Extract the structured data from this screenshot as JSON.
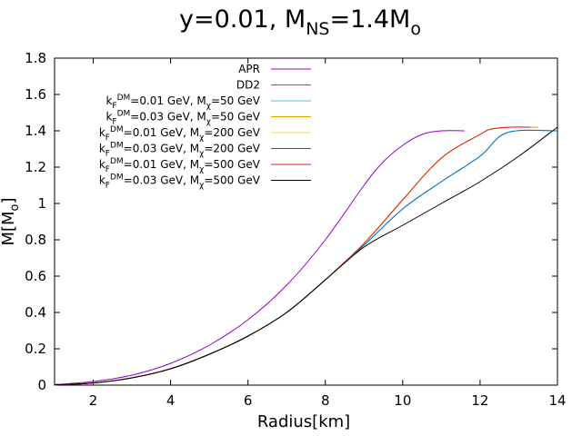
{
  "chart_data": {
    "type": "line",
    "title": "y=0.01, M<sub>NS</sub>=1.4M<sub>o</sub>",
    "xlabel": "Radius[km]",
    "ylabel": "M[M<sub>o</sub>]",
    "xlim": [
      1,
      14
    ],
    "ylim": [
      0,
      1.8
    ],
    "xticks": [
      2,
      4,
      6,
      8,
      10,
      12,
      14
    ],
    "yticks": [
      0,
      0.2,
      0.4,
      0.6,
      0.8,
      1,
      1.2,
      1.4,
      1.6,
      1.8
    ],
    "grid": false,
    "legend_position": "top-left",
    "series": [
      {
        "name": "APR",
        "color": "#9400d3",
        "x": [
          1,
          2,
          3,
          4,
          5,
          6,
          7,
          8,
          9,
          9.5,
          10,
          10.5,
          11,
          11.6
        ],
        "y": [
          0.003,
          0.02,
          0.055,
          0.12,
          0.22,
          0.36,
          0.55,
          0.8,
          1.1,
          1.23,
          1.32,
          1.38,
          1.4,
          1.4
        ]
      },
      {
        "name": "DD2",
        "color": "#009e73",
        "x": [
          1,
          2,
          3,
          4,
          5,
          6,
          7,
          8,
          9,
          10,
          11,
          12,
          12.3,
          12.8,
          13.3
        ],
        "y": [
          0.002,
          0.012,
          0.04,
          0.09,
          0.17,
          0.27,
          0.4,
          0.58,
          0.78,
          1.02,
          1.25,
          1.38,
          1.41,
          1.42,
          1.42
        ]
      },
      {
        "name": "k<sub>F</sub><sup>DM</sup>=0.01 GeV, M<sub>χ</sub>=50 GeV",
        "color": "#56b4e9",
        "x": [
          1,
          2,
          3,
          4,
          5,
          6,
          7,
          8,
          9,
          10,
          11,
          12,
          12.7,
          14
        ],
        "y": [
          0.002,
          0.012,
          0.04,
          0.09,
          0.17,
          0.27,
          0.4,
          0.58,
          0.77,
          0.97,
          1.12,
          1.26,
          1.39,
          1.4
        ]
      },
      {
        "name": "k<sub>F</sub><sup>DM</sup>=0.03 GeV, M<sub>χ</sub>=50 GeV",
        "color": "#e69f00",
        "x": [
          1,
          2,
          3,
          4,
          5,
          6,
          7,
          8,
          9,
          10,
          11,
          12,
          12.3,
          12.8,
          13.5
        ],
        "y": [
          0.002,
          0.012,
          0.04,
          0.09,
          0.17,
          0.27,
          0.4,
          0.58,
          0.78,
          1.02,
          1.25,
          1.38,
          1.41,
          1.42,
          1.42
        ]
      },
      {
        "name": "k<sub>F</sub><sup>DM</sup>=0.01 GeV, M<sub>χ</sub>=200 GeV",
        "color": "#f0e442",
        "x": [
          1,
          2,
          3,
          4,
          5,
          6,
          7,
          8,
          9,
          10,
          11,
          12,
          12.3,
          12.8,
          13.3
        ],
        "y": [
          0.002,
          0.012,
          0.04,
          0.09,
          0.17,
          0.27,
          0.4,
          0.58,
          0.78,
          1.02,
          1.25,
          1.38,
          1.41,
          1.42,
          1.42
        ]
      },
      {
        "name": "k<sub>F</sub><sup>DM</sup>=0.03 GeV, M<sub>χ</sub>=200 GeV",
        "color": "#0072b2",
        "x": [
          1,
          2,
          3,
          4,
          5,
          6,
          7,
          8,
          9,
          10,
          11,
          12,
          12.7,
          14
        ],
        "y": [
          0.002,
          0.012,
          0.04,
          0.09,
          0.17,
          0.27,
          0.4,
          0.58,
          0.77,
          0.97,
          1.12,
          1.26,
          1.39,
          1.4
        ]
      },
      {
        "name": "k<sub>F</sub><sup>DM</sup>=0.01 GeV, M<sub>χ</sub>=500 GeV",
        "color": "#e51e10",
        "x": [
          1,
          2,
          3,
          4,
          5,
          6,
          7,
          8,
          9,
          10,
          11,
          12,
          12.3,
          12.8,
          13.3
        ],
        "y": [
          0.002,
          0.012,
          0.04,
          0.09,
          0.17,
          0.27,
          0.4,
          0.58,
          0.78,
          1.02,
          1.25,
          1.38,
          1.41,
          1.42,
          1.42
        ]
      },
      {
        "name": "k<sub>F</sub><sup>DM</sup>=0.03 GeV, M<sub>χ</sub>=500 GeV",
        "color": "#000000",
        "x": [
          1,
          2,
          3,
          4,
          5,
          6,
          7,
          8,
          9,
          10,
          11,
          12,
          13,
          14
        ],
        "y": [
          0.002,
          0.012,
          0.04,
          0.09,
          0.17,
          0.27,
          0.4,
          0.58,
          0.76,
          0.88,
          1.0,
          1.12,
          1.26,
          1.42
        ]
      }
    ]
  }
}
